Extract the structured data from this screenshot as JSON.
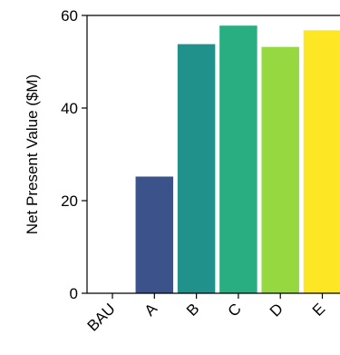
{
  "chart_data": {
    "type": "bar",
    "categories": [
      "BAU",
      "A",
      "B",
      "C",
      "D",
      "E"
    ],
    "values": [
      0,
      25.2,
      53.8,
      57.8,
      53.2,
      56.8
    ],
    "ylabel": "Net Present Value ($M)",
    "xlabel": "",
    "ylim": [
      0,
      60
    ],
    "yticks": [
      0,
      20,
      40,
      60
    ],
    "grid": false,
    "colors": [
      "#440154",
      "#3b528b",
      "#21918c",
      "#28ae80",
      "#95d840",
      "#fde725"
    ]
  }
}
